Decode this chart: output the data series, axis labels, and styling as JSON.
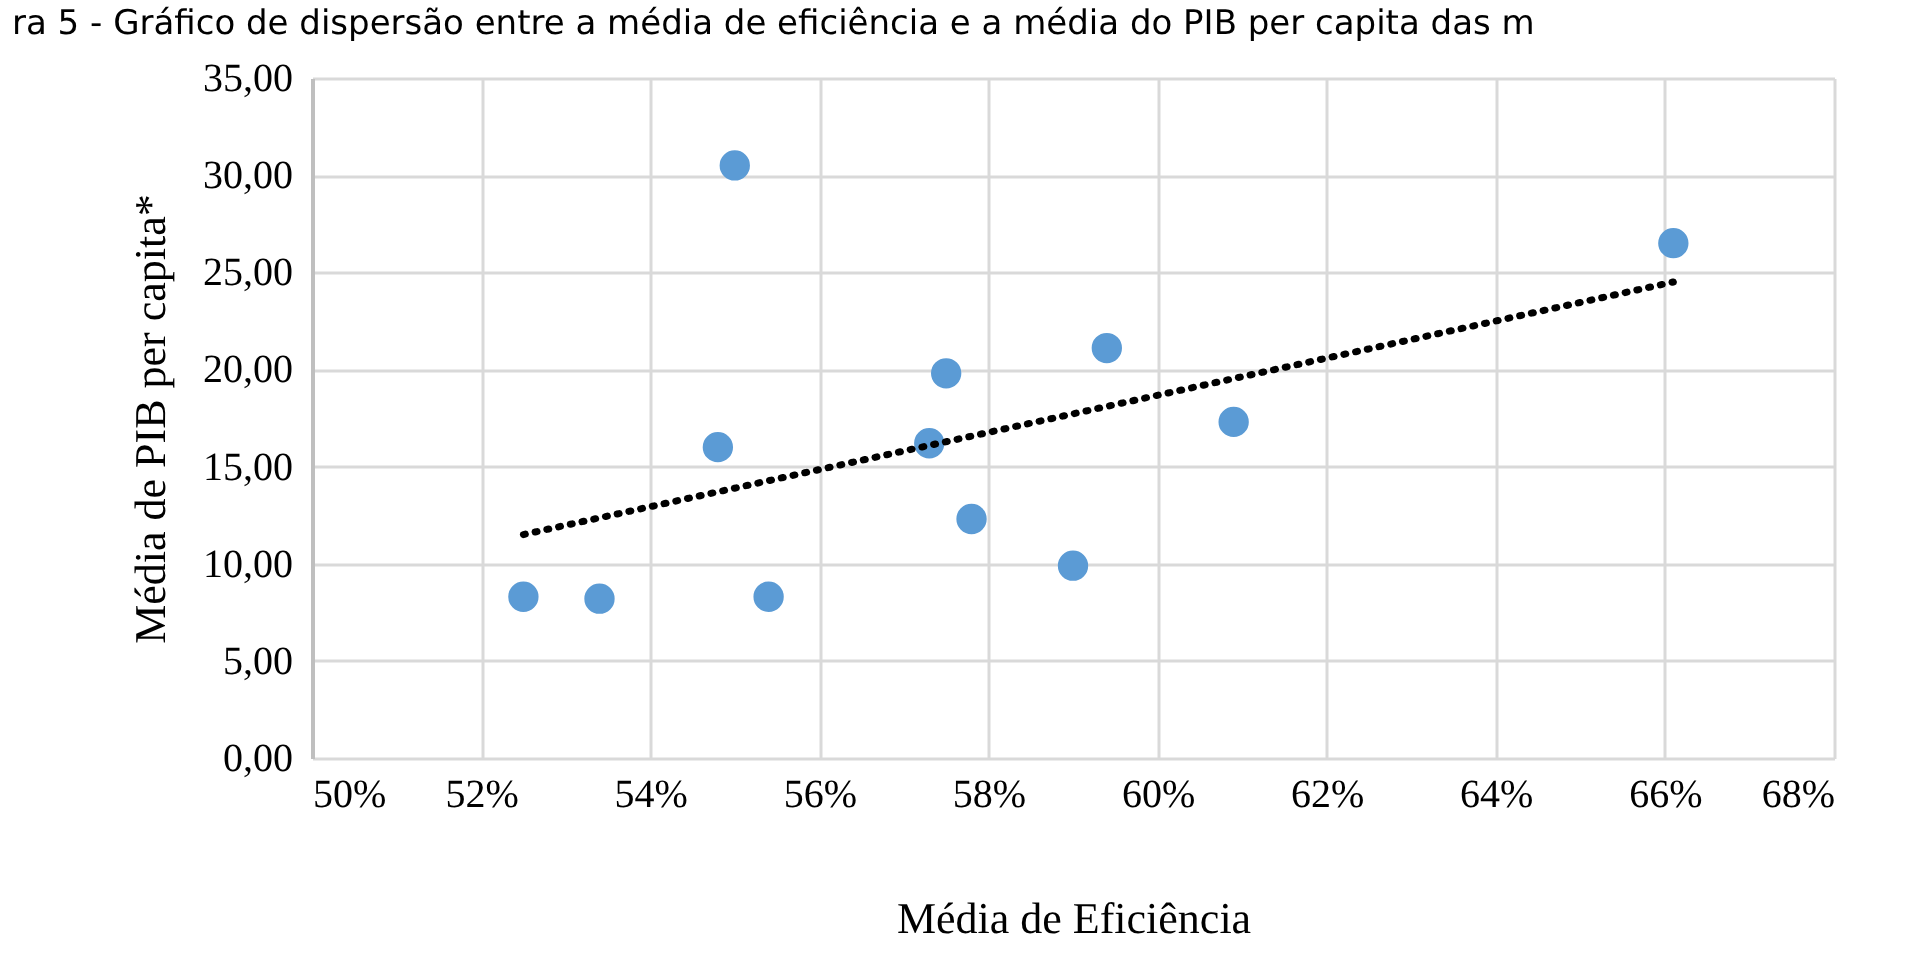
{
  "chart_data": {
    "type": "scatter",
    "title": "ra 5 - Gráfico de dispersão entre a média de eficiência e a média do PIB per capita das m",
    "xlabel": "Média de Eficiência",
    "ylabel": "Média de PIB per capita*",
    "series": [
      {
        "color": "#5b9bd5",
        "marker": "circle",
        "x": [
          52.5,
          53.4,
          55.0,
          54.8,
          55.4,
          57.3,
          57.5,
          57.8,
          59.0,
          59.4,
          60.9,
          66.1
        ],
        "values": [
          8.3,
          8.2,
          30.5,
          16.0,
          8.3,
          16.2,
          19.8,
          12.3,
          9.9,
          21.1,
          17.3,
          26.5
        ]
      },
      {
        "type": "line",
        "color": "#000000",
        "line_style": "dotted",
        "marker": "none",
        "x": [
          52.5,
          66.1
        ],
        "values": [
          11.5,
          24.5
        ]
      }
    ],
    "xlim": [
      50,
      68
    ],
    "xticks": [
      {
        "value": 50,
        "label": "50%"
      },
      {
        "value": 52,
        "label": "52%"
      },
      {
        "value": 54,
        "label": "54%"
      },
      {
        "value": 56,
        "label": "56%"
      },
      {
        "value": 58,
        "label": "58%"
      },
      {
        "value": 60,
        "label": "60%"
      },
      {
        "value": 62,
        "label": "62%"
      },
      {
        "value": 64,
        "label": "64%"
      },
      {
        "value": 66,
        "label": "66%"
      },
      {
        "value": 68,
        "label": "68%"
      }
    ],
    "ylim": [
      0,
      35
    ],
    "yticks": [
      {
        "value": 0,
        "label": "0,00"
      },
      {
        "value": 5,
        "label": "5,00"
      },
      {
        "value": 10,
        "label": "10,00"
      },
      {
        "value": 15,
        "label": "15,00"
      },
      {
        "value": 20,
        "label": "20,00"
      },
      {
        "value": 25,
        "label": "25,00"
      },
      {
        "value": 30,
        "label": "30,00"
      },
      {
        "value": 35,
        "label": "35,00"
      }
    ],
    "grid": true,
    "legend": false
  }
}
